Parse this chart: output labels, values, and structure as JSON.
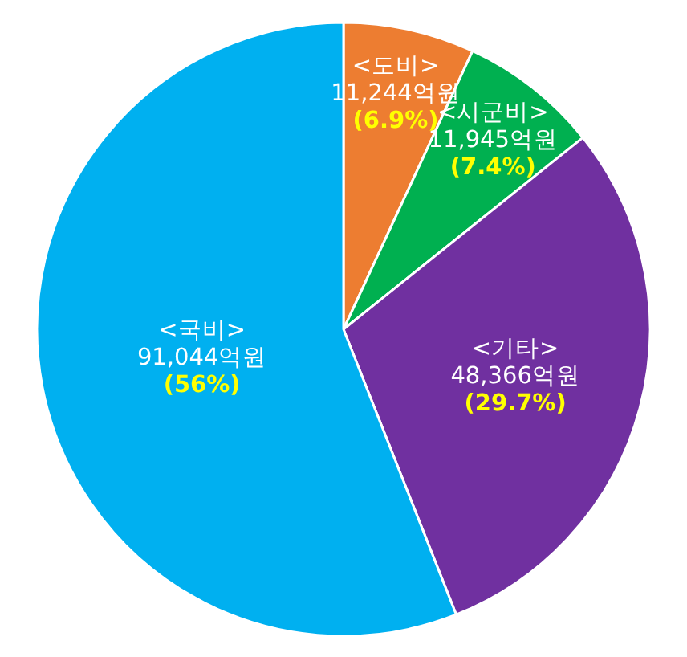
{
  "chart_data": {
    "type": "pie",
    "categories": [
      "<도비>",
      "<시군비>",
      "<기타>",
      "<국비>"
    ],
    "values": [
      11244,
      11945,
      48366,
      91044
    ],
    "colors": [
      "#ed7d31",
      "#00b050",
      "#7030a0",
      "#00b0f0"
    ],
    "value_labels": [
      "11,244억원",
      "11,945억원",
      "48,366억원",
      "91,044억원"
    ],
    "annotations": [
      "(6.9%)",
      "(7.4%)",
      "(29.7%)",
      "(56%)"
    ]
  }
}
